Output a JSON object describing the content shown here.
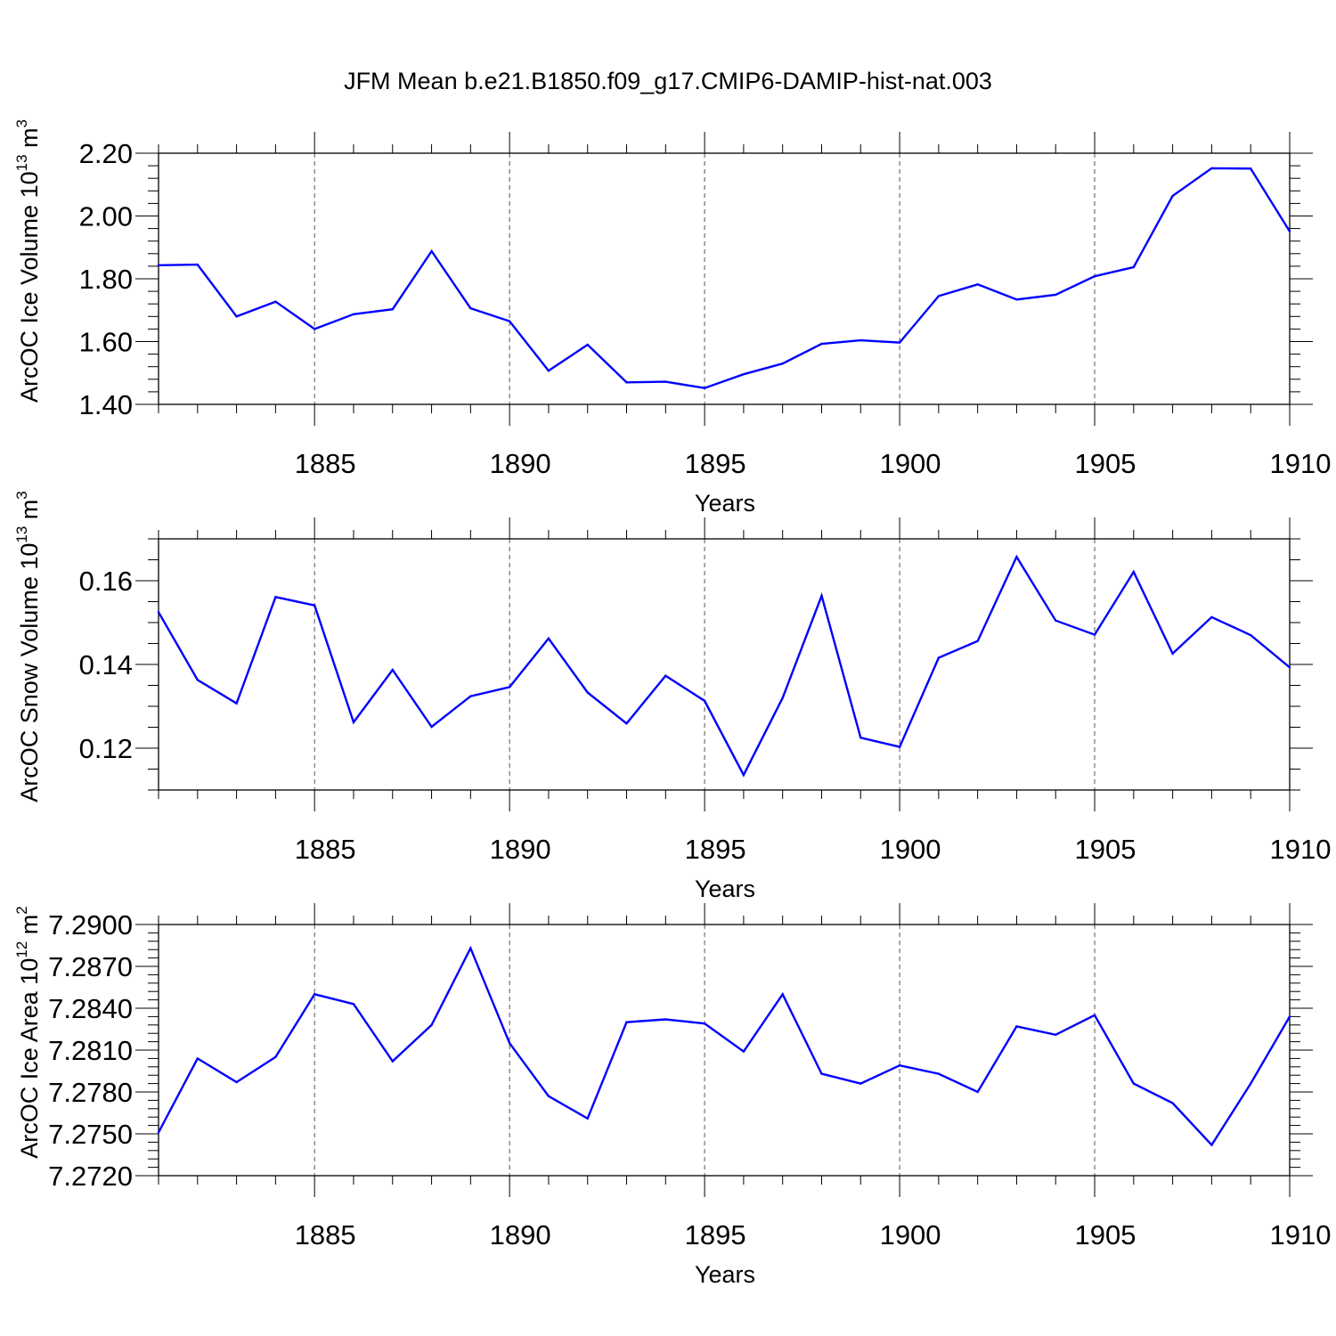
{
  "page_title": "JFM Mean b.e21.B1850.f09_g17.CMIP6-DAMIP-hist-nat.003",
  "colors": {
    "line": "#0000ff",
    "axis": "#000000",
    "grid": "#555555"
  },
  "chart_data": [
    {
      "type": "line",
      "title": "JFM Mean b.e21.B1850.f09_g17.CMIP6-DAMIP-hist-nat.003",
      "xlabel": "Years",
      "ylabel": "ArcOC Ice Volume",
      "ylabel_unit_base": "10",
      "ylabel_unit_exp": "13",
      "ylabel_unit_m": "m",
      "ylabel_unit_m_exp": "3",
      "xlim": [
        1881,
        1910
      ],
      "ylim": [
        1.4,
        2.2
      ],
      "yticks": [
        1.4,
        1.6,
        1.8,
        2.0,
        2.2
      ],
      "ytick_labels": [
        "1.40",
        "1.60",
        "1.80",
        "2.00",
        "2.20"
      ],
      "yminor_step": 0.04,
      "xticks": [
        1885,
        1890,
        1895,
        1900,
        1905,
        1910
      ],
      "xtick_labels": [
        "1885",
        "1890",
        "1895",
        "1900",
        "1905",
        "1910"
      ],
      "grid": "vertical-dashed",
      "x": [
        1881,
        1882,
        1883,
        1884,
        1885,
        1886,
        1887,
        1888,
        1889,
        1890,
        1891,
        1892,
        1893,
        1894,
        1895,
        1896,
        1897,
        1898,
        1899,
        1900,
        1901,
        1902,
        1903,
        1904,
        1905,
        1906,
        1907,
        1908,
        1909,
        1910
      ],
      "values": [
        1.843,
        1.845,
        1.68,
        1.727,
        1.64,
        1.687,
        1.703,
        1.888,
        1.706,
        1.665,
        1.507,
        1.59,
        1.47,
        1.472,
        1.452,
        1.496,
        1.53,
        1.593,
        1.604,
        1.597,
        1.745,
        1.782,
        1.734,
        1.749,
        1.808,
        1.837,
        2.064,
        2.152,
        2.151,
        1.951
      ]
    },
    {
      "type": "line",
      "xlabel": "Years",
      "ylabel": "ArcOC Snow Volume",
      "ylabel_unit_base": "10",
      "ylabel_unit_exp": "13",
      "ylabel_unit_m": "m",
      "ylabel_unit_m_exp": "3",
      "xlim": [
        1881,
        1910
      ],
      "ylim": [
        0.11,
        0.17
      ],
      "yticks": [
        0.12,
        0.14,
        0.16
      ],
      "ytick_labels": [
        "0.12",
        "0.14",
        "0.16"
      ],
      "yminor_step": 0.005,
      "xticks": [
        1885,
        1890,
        1895,
        1900,
        1905,
        1910
      ],
      "xtick_labels": [
        "1885",
        "1890",
        "1895",
        "1900",
        "1905",
        "1910"
      ],
      "grid": "vertical-dashed",
      "x": [
        1881,
        1882,
        1883,
        1884,
        1885,
        1886,
        1887,
        1888,
        1889,
        1890,
        1891,
        1892,
        1893,
        1894,
        1895,
        1896,
        1897,
        1898,
        1899,
        1900,
        1901,
        1902,
        1903,
        1904,
        1905,
        1906,
        1907,
        1908,
        1909,
        1910
      ],
      "values": [
        0.1525,
        0.1363,
        0.1307,
        0.1561,
        0.1541,
        0.1262,
        0.1387,
        0.1251,
        0.1324,
        0.1346,
        0.1462,
        0.1333,
        0.1259,
        0.1373,
        0.1313,
        0.1136,
        0.132,
        0.1564,
        0.1225,
        0.1203,
        0.1416,
        0.1456,
        0.1657,
        0.1505,
        0.1471,
        0.1621,
        0.1426,
        0.1513,
        0.147,
        0.1393
      ]
    },
    {
      "type": "line",
      "xlabel": "Years",
      "ylabel": "ArcOC Ice Area",
      "ylabel_unit_base": "10",
      "ylabel_unit_exp": "12",
      "ylabel_unit_m": "m",
      "ylabel_unit_m_exp": "2",
      "xlim": [
        1881,
        1910
      ],
      "ylim": [
        7.272,
        7.29
      ],
      "yticks": [
        7.272,
        7.275,
        7.278,
        7.281,
        7.284,
        7.287,
        7.29
      ],
      "ytick_labels": [
        "7.2720",
        "7.2750",
        "7.2780",
        "7.2810",
        "7.2840",
        "7.2870",
        "7.2900"
      ],
      "yminor_step": 0.0006,
      "xticks": [
        1885,
        1890,
        1895,
        1900,
        1905,
        1910
      ],
      "xtick_labels": [
        "1885",
        "1890",
        "1895",
        "1900",
        "1905",
        "1910"
      ],
      "grid": "vertical-dashed",
      "x": [
        1881,
        1882,
        1883,
        1884,
        1885,
        1886,
        1887,
        1888,
        1889,
        1890,
        1891,
        1892,
        1893,
        1894,
        1895,
        1896,
        1897,
        1898,
        1899,
        1900,
        1901,
        1902,
        1903,
        1904,
        1905,
        1906,
        1907,
        1908,
        1909,
        1910
      ],
      "values": [
        7.2751,
        7.2804,
        7.2787,
        7.2805,
        7.285,
        7.2843,
        7.2802,
        7.2828,
        7.2883,
        7.2815,
        7.2777,
        7.2761,
        7.283,
        7.2832,
        7.2829,
        7.2809,
        7.285,
        7.2793,
        7.2786,
        7.2799,
        7.2793,
        7.278,
        7.2827,
        7.2821,
        7.2835,
        7.2786,
        7.2772,
        7.2742,
        7.2786,
        7.2834
      ]
    }
  ]
}
